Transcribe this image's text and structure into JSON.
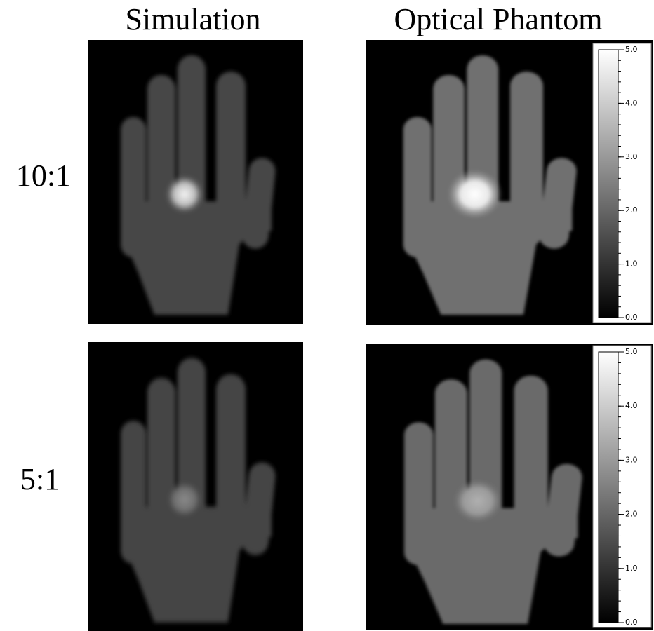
{
  "columns": [
    "Simulation",
    "Optical Phantom"
  ],
  "rows": [
    {
      "label": "10:1",
      "colorbar": {
        "ticks": [
          {
            "value": 0,
            "label": "0.0"
          },
          {
            "value": 1,
            "label": "1.0"
          },
          {
            "value": 2,
            "label": "2.0"
          },
          {
            "value": 3,
            "label": "3.0"
          },
          {
            "value": 4,
            "label": "4.0"
          },
          {
            "value": 5,
            "label": "5.0"
          }
        ]
      }
    },
    {
      "label": "5:1",
      "colorbar": {
        "ticks": [
          {
            "value": 0,
            "label": "0.0"
          },
          {
            "value": 1,
            "label": "1.0"
          },
          {
            "value": 2,
            "label": "2.0"
          },
          {
            "value": 3,
            "label": "3.0"
          },
          {
            "value": 4,
            "label": "4.0"
          },
          {
            "value": 5,
            "label": "5.0"
          }
        ]
      }
    }
  ]
}
